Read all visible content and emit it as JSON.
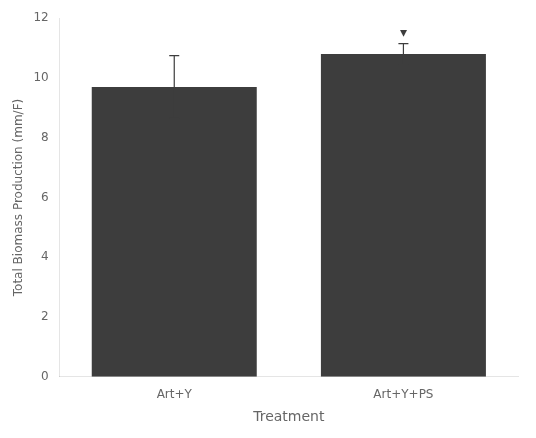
{
  "chart_data": {
    "type": "bar",
    "categories": [
      "Art+Y",
      "Art+Y+PS"
    ],
    "values": [
      9.7,
      10.8
    ],
    "errors": [
      1.05,
      0.35
    ],
    "color": "#3d3d3d",
    "xlabel": "Treatment",
    "ylabel": "Total Biomass Production (mm/F)",
    "ylim": [
      0,
      12
    ],
    "yticks": [
      0,
      2,
      4,
      6,
      8,
      10,
      12
    ],
    "grid": false,
    "annotations": [
      {
        "text": "▾",
        "x": "Art+Y+PS",
        "y": 11.25
      }
    ]
  }
}
